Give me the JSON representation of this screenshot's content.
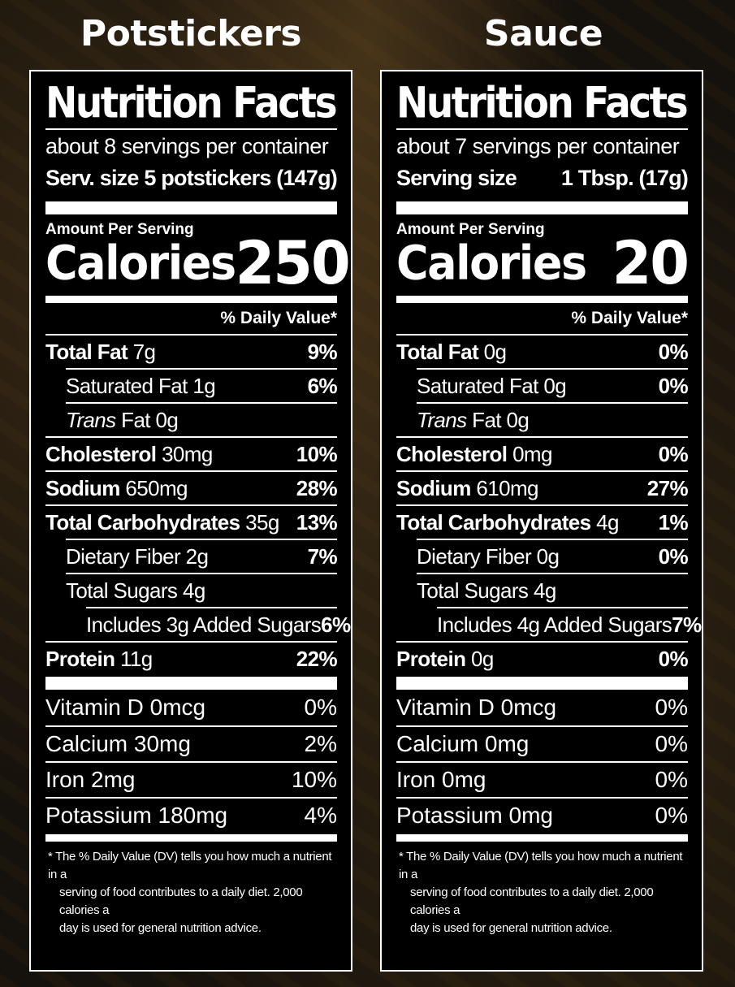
{
  "panels": [
    {
      "heading": "Potstickers",
      "title": "Nutrition Facts",
      "servings": "about 8 servings per container",
      "serving_label": "Serv. size",
      "serving_value": "5 potstickers (147g)",
      "amount_per_serving": "Amount Per Serving",
      "calories_label": "Calories",
      "calories": "250",
      "dv_header": "% Daily Value*",
      "nutrients": [
        {
          "name": "Total Fat",
          "amount": "7g",
          "dv": "9%"
        },
        {
          "name": "Saturated Fat",
          "amount": "1g",
          "dv": "6%"
        },
        {
          "name": "Trans",
          "suffix": "Fat",
          "amount": "0g",
          "dv": ""
        },
        {
          "name": "Cholesterol",
          "amount": "30mg",
          "dv": "10%"
        },
        {
          "name": "Sodium",
          "amount": "650mg",
          "dv": "28%"
        },
        {
          "name": "Total Carbohydrates",
          "amount": "35g",
          "dv": "13%"
        },
        {
          "name": "Dietary Fiber",
          "amount": "2g",
          "dv": "7%"
        },
        {
          "name": "Total Sugars",
          "amount": "4g",
          "dv": ""
        },
        {
          "name": "Includes 3g Added Sugars",
          "amount": "",
          "dv": "6%"
        },
        {
          "name": "Protein",
          "amount": "11g",
          "dv": "22%"
        }
      ],
      "vitamins": [
        {
          "name": "Vitamin D 0mcg",
          "dv": "0%"
        },
        {
          "name": "Calcium 30mg",
          "dv": "2%"
        },
        {
          "name": "Iron 2mg",
          "dv": "10%"
        },
        {
          "name": "Potassium 180mg",
          "dv": "4%"
        }
      ],
      "footnote": [
        "* The % Daily Value (DV) tells you how much a nutrient in a",
        "serving of food contributes to a daily diet. 2,000 calories a",
        "day is used for general nutrition advice."
      ]
    },
    {
      "heading": "Sauce",
      "title": "Nutrition Facts",
      "servings": "about 7 servings per container",
      "serving_label": "Serving size",
      "serving_value": "1 Tbsp. (17g)",
      "amount_per_serving": "Amount Per Serving",
      "calories_label": "Calories",
      "calories": "20",
      "dv_header": "% Daily Value*",
      "nutrients": [
        {
          "name": "Total Fat",
          "amount": "0g",
          "dv": "0%"
        },
        {
          "name": "Saturated Fat",
          "amount": "0g",
          "dv": "0%"
        },
        {
          "name": "Trans",
          "suffix": "Fat",
          "amount": "0g",
          "dv": ""
        },
        {
          "name": "Cholesterol",
          "amount": "0mg",
          "dv": "0%"
        },
        {
          "name": "Sodium",
          "amount": "610mg",
          "dv": "27%"
        },
        {
          "name": "Total Carbohydrates",
          "amount": "4g",
          "dv": "1%"
        },
        {
          "name": "Dietary Fiber",
          "amount": "0g",
          "dv": "0%"
        },
        {
          "name": "Total Sugars",
          "amount": "4g",
          "dv": ""
        },
        {
          "name": "Includes 4g Added Sugars",
          "amount": "",
          "dv": "7%"
        },
        {
          "name": "Protein",
          "amount": "0g",
          "dv": "0%"
        }
      ],
      "vitamins": [
        {
          "name": "Vitamin D 0mcg",
          "dv": "0%"
        },
        {
          "name": "Calcium 0mg",
          "dv": "0%"
        },
        {
          "name": "Iron 0mg",
          "dv": "0%"
        },
        {
          "name": "Potassium 0mg",
          "dv": "0%"
        }
      ],
      "footnote": [
        "* The % Daily Value (DV) tells you how much a nutrient in a",
        "serving of food contributes to a daily diet. 2,000 calories a",
        "day is used for general nutrition advice."
      ]
    }
  ]
}
